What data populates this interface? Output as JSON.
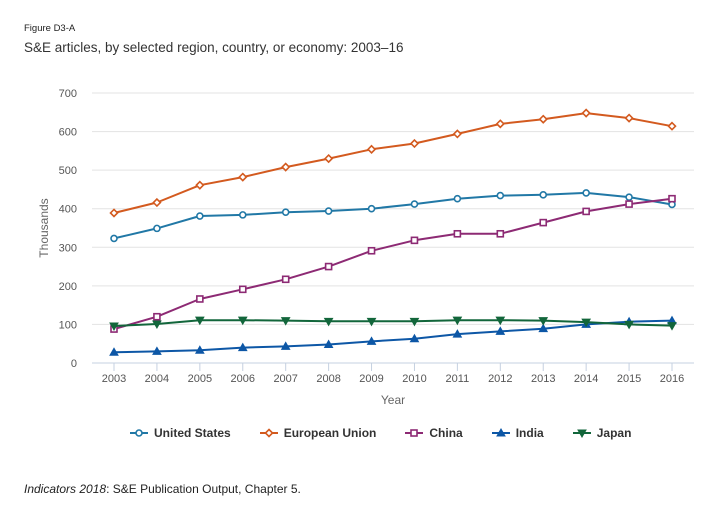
{
  "figure_label": "Figure D3-A",
  "title": "S&E articles, by selected region, country, or economy: 2003–16",
  "source_italic": "Indicators 2018",
  "source_rest": ": S&E Publication Output, Chapter 5.",
  "chart_data": {
    "type": "line",
    "title": "S&E articles, by selected region, country, or economy: 2003–16",
    "xlabel": "Year",
    "ylabel": "Thousands",
    "ylim": [
      0,
      700
    ],
    "yticks": [
      0,
      100,
      200,
      300,
      400,
      500,
      600,
      700
    ],
    "grid": true,
    "legend_position": "bottom",
    "x": [
      "2003",
      "2004",
      "2005",
      "2006",
      "2007",
      "2008",
      "2009",
      "2010",
      "2011",
      "2012",
      "2013",
      "2014",
      "2015",
      "2016"
    ],
    "series": [
      {
        "name": "United States",
        "color": "#2178a6",
        "marker": "circle",
        "values": [
          323,
          349,
          381,
          384,
          391,
          394,
          400,
          412,
          426,
          434,
          436,
          441,
          430,
          411
        ]
      },
      {
        "name": "European Union",
        "color": "#d35a1f",
        "marker": "diamond",
        "values": [
          389,
          416,
          461,
          482,
          508,
          530,
          554,
          569,
          594,
          620,
          632,
          648,
          635,
          614
        ]
      },
      {
        "name": "China",
        "color": "#8d2a74",
        "marker": "square",
        "values": [
          88,
          120,
          166,
          191,
          217,
          250,
          291,
          318,
          335,
          335,
          364,
          393,
          412,
          426
        ]
      },
      {
        "name": "India",
        "color": "#0d57a6",
        "marker": "triangle-up",
        "values": [
          28,
          30,
          33,
          40,
          43,
          48,
          56,
          63,
          75,
          82,
          89,
          100,
          107,
          110
        ]
      },
      {
        "name": "Japan",
        "color": "#12663b",
        "marker": "triangle-down",
        "values": [
          96,
          101,
          111,
          111,
          110,
          108,
          108,
          108,
          111,
          111,
          110,
          106,
          100,
          97
        ]
      }
    ]
  }
}
